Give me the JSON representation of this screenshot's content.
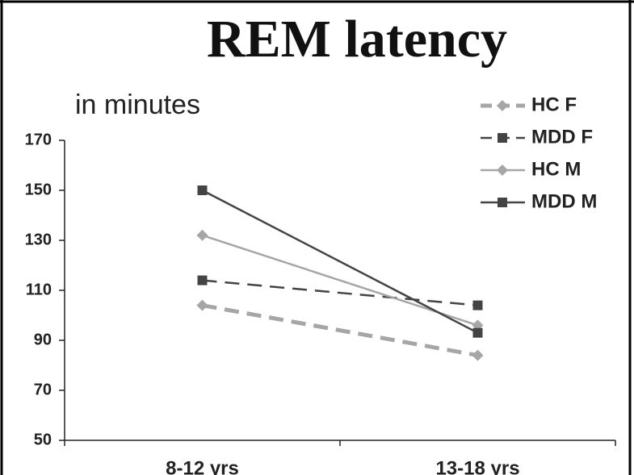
{
  "chart_data": {
    "type": "line",
    "title": "REM latency",
    "y_label": "in minutes",
    "categories": [
      "8-12 yrs",
      "13-18 yrs"
    ],
    "series": [
      {
        "name": "HC F",
        "color": "#a6a6a6",
        "dashed": true,
        "width": 5,
        "marker": "diamond",
        "values": [
          104,
          84
        ]
      },
      {
        "name": "MDD F",
        "color": "#444444",
        "dashed": true,
        "width": 2.5,
        "marker": "square",
        "values": [
          114,
          104
        ]
      },
      {
        "name": "HC M",
        "color": "#a6a6a6",
        "dashed": false,
        "width": 2.5,
        "marker": "diamond",
        "values": [
          132,
          96
        ]
      },
      {
        "name": "MDD M",
        "color": "#444444",
        "dashed": false,
        "width": 2.5,
        "marker": "square",
        "values": [
          150,
          93
        ]
      }
    ],
    "ylim": [
      50,
      170
    ],
    "yticks": [
      50,
      70,
      90,
      110,
      130,
      150,
      170
    ],
    "legend": "upper right"
  }
}
